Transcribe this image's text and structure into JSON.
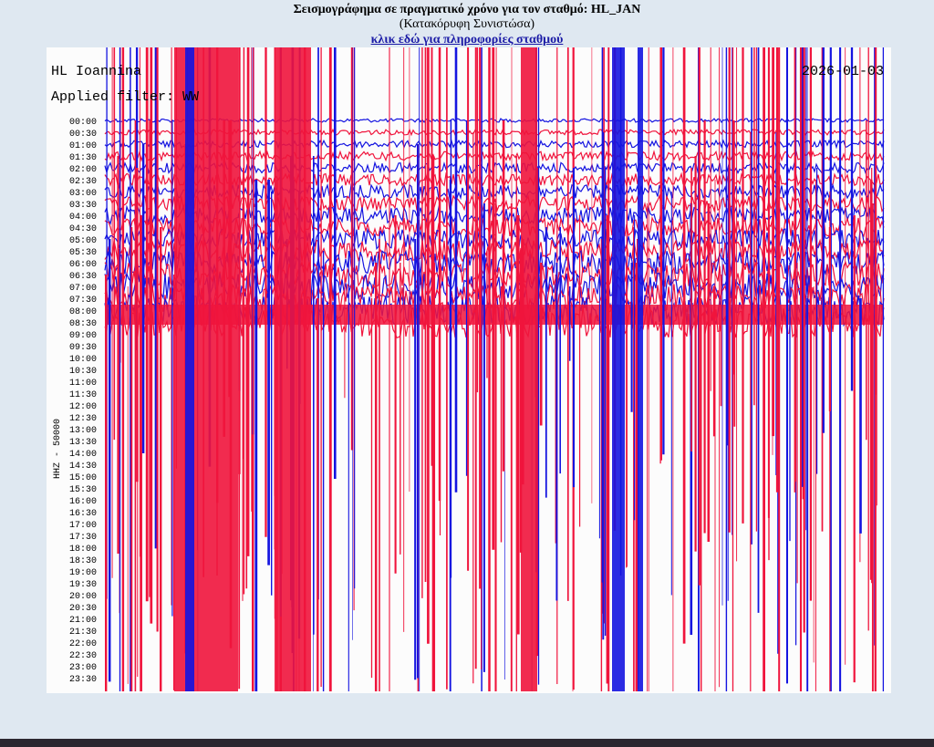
{
  "header": {
    "title": "Σεισμογράφημα σε πραγματικό χρόνο για τον σταθμό: HL_JAN",
    "subtitle": "(Κατακόρυφη Συνιστώσα)",
    "link": "κλικ εδώ για πληροφορίες σταθμού"
  },
  "plot": {
    "station": "HL Ioannina",
    "filter": "Applied filter: WW",
    "date": "2026-01-03",
    "channel_label": "HHZ - 50000",
    "time_labels": [
      "00:00",
      "00:30",
      "01:00",
      "01:30",
      "02:00",
      "02:30",
      "03:00",
      "03:30",
      "04:00",
      "04:30",
      "05:00",
      "05:30",
      "06:00",
      "06:30",
      "07:00",
      "07:30",
      "08:00",
      "08:30",
      "09:00",
      "09:30",
      "10:00",
      "10:30",
      "11:00",
      "11:30",
      "12:00",
      "12:30",
      "13:00",
      "13:30",
      "14:00",
      "14:30",
      "15:00",
      "15:30",
      "16:00",
      "16:30",
      "17:00",
      "17:30",
      "18:00",
      "18:30",
      "19:00",
      "19:30",
      "20:00",
      "20:30",
      "21:00",
      "21:30",
      "22:00",
      "22:30",
      "23:00",
      "23:30"
    ]
  }
}
